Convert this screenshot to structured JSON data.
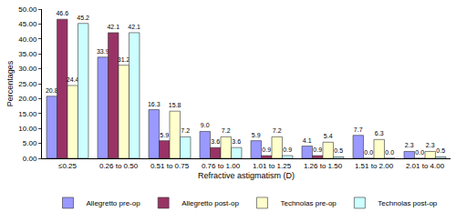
{
  "chart_data": {
    "type": "bar",
    "x_label": "Refractive astigmatism (D)",
    "y_label": "Percentages",
    "categories": [
      "≤0.25",
      "0.26 to 0.50",
      "0.51 to 0.75",
      "0.76 to 1.00",
      "1.01 to 1.25",
      "1.26 to 1.50",
      "1.51 to 2.00",
      "2.01 to 4.00"
    ],
    "series": [
      {
        "name": "Allegretto pre-op",
        "color": "#9999ff",
        "values": [
          20.8,
          33.9,
          16.3,
          9.0,
          5.9,
          4.1,
          7.7,
          2.3
        ],
        "value_labels": [
          "20.8",
          "33.9",
          "16.3",
          "9.0",
          "5.9",
          "4.1",
          "7.7",
          "2.3"
        ]
      },
      {
        "name": "Allegretto post-op",
        "color": "#993366",
        "values": [
          46.6,
          42.1,
          5.9,
          3.6,
          0.9,
          0.9,
          0.0,
          0.0
        ],
        "value_labels": [
          "46.6",
          "42.1",
          "5.9",
          "3.6",
          "0.9",
          "0.9",
          "0.0",
          "0.0"
        ]
      },
      {
        "name": "Technolas pre-op",
        "color": "#ffffcc",
        "values": [
          24.4,
          31.2,
          15.8,
          7.2,
          7.2,
          5.4,
          6.3,
          2.3
        ],
        "value_labels": [
          "24.4",
          "31.2",
          "15.8",
          "7.2",
          "7.2",
          "5.4",
          "6.3",
          "2.3"
        ]
      },
      {
        "name": "Technolas post-op",
        "color": "#ccffff",
        "values": [
          45.2,
          42.1,
          7.2,
          3.6,
          0.9,
          0.5,
          0.0,
          0.5
        ],
        "value_labels": [
          "45.2",
          "42.1",
          "7.2",
          "3.6",
          "0.9",
          "0.5",
          "0.0",
          "0.5"
        ]
      }
    ],
    "ylim": [
      0,
      50
    ],
    "yticks": [
      {
        "value": 0,
        "label": "0.00"
      },
      {
        "value": 5,
        "label": "5.00"
      },
      {
        "value": 10,
        "label": "10.00"
      },
      {
        "value": 15,
        "label": "15.00"
      },
      {
        "value": 20,
        "label": "20.00"
      },
      {
        "value": 25,
        "label": "25.00"
      },
      {
        "value": 30,
        "label": "30.00"
      },
      {
        "value": 35,
        "label": "35.00"
      },
      {
        "value": 40,
        "label": "40.00"
      },
      {
        "value": 45,
        "label": "45.00"
      },
      {
        "value": 50,
        "label": "50.00"
      }
    ],
    "grid": false,
    "legend": "bottom",
    "data_labels": true
  }
}
